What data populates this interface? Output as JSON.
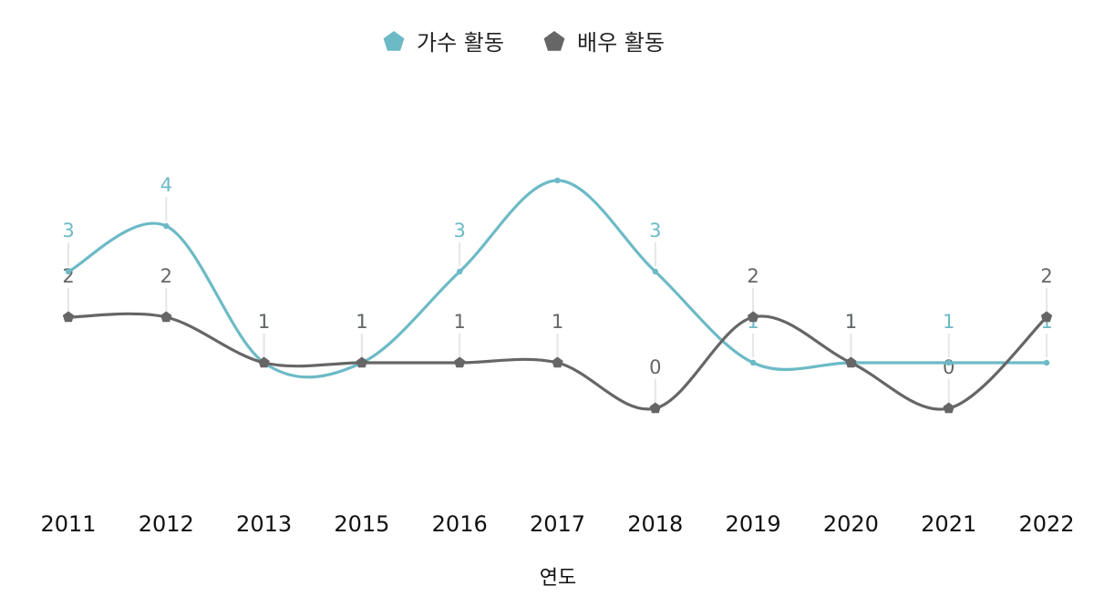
{
  "chart_data": {
    "type": "line",
    "smooth": true,
    "xlabel": "연도",
    "ylabel": "",
    "categories": [
      "2011",
      "2012",
      "2013",
      "2015",
      "2016",
      "2017",
      "2018",
      "2019",
      "2020",
      "2021",
      "2022"
    ],
    "ylim": [
      -2,
      6
    ],
    "grid": false,
    "legend": {
      "position": "top-center",
      "marker": "pentagon"
    },
    "series": [
      {
        "name": "가수 활동",
        "color": "#6cbac6",
        "values": [
          3,
          4,
          1,
          1,
          3,
          5,
          3,
          1,
          1,
          1,
          1
        ],
        "labels": [
          "3",
          "4",
          "1",
          "1",
          "3",
          "",
          "3",
          "1",
          "1",
          "1",
          "1"
        ]
      },
      {
        "name": "배우 활동",
        "color": "#666666",
        "values": [
          2,
          2,
          1,
          1,
          1,
          1,
          0,
          2,
          1,
          0,
          2
        ],
        "labels": [
          "2",
          "2",
          "1",
          "1",
          "1",
          "1",
          "0",
          "2",
          "1",
          "0",
          "2"
        ]
      }
    ]
  }
}
